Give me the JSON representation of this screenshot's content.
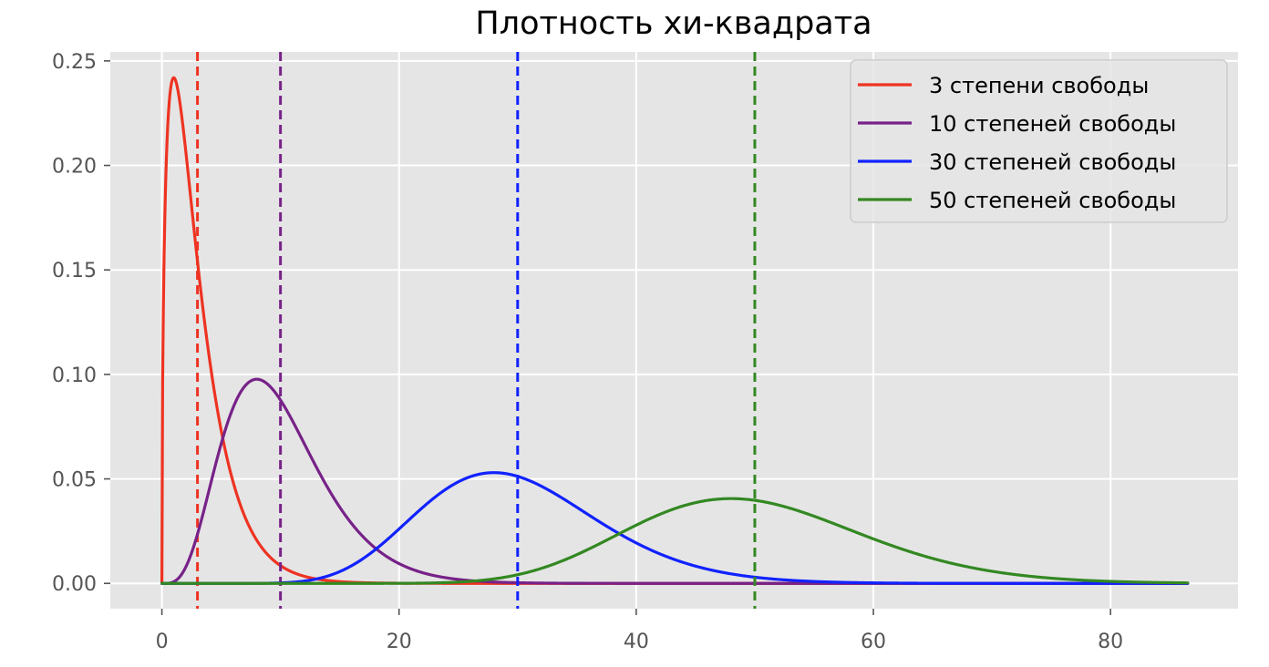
{
  "chart_data": {
    "type": "line",
    "title": "Плотность хи-квадрата",
    "xlabel": "",
    "ylabel": "",
    "xlim": [
      -4.35,
      90.75
    ],
    "ylim": [
      -0.0121,
      0.2543
    ],
    "x_ticks": [
      0,
      20,
      40,
      60,
      80
    ],
    "y_ticks": [
      0.0,
      0.05,
      0.1,
      0.15,
      0.2,
      0.25
    ],
    "x_tick_labels": [
      "0",
      "20",
      "40",
      "60",
      "80"
    ],
    "y_tick_labels": [
      "0.00",
      "0.05",
      "0.10",
      "0.15",
      "0.20",
      "0.25"
    ],
    "x_range": [
      0,
      86.5
    ],
    "grid": true,
    "background": "#e5e5e5",
    "legend_position": "top-right",
    "series": [
      {
        "name": "3 степени свободы",
        "df": 3,
        "color": "#ee3322",
        "mean_line_x": 3,
        "x": [
          0,
          0.25,
          0.5,
          1,
          1.5,
          2,
          3,
          4,
          5,
          6,
          8,
          10,
          12,
          15,
          20,
          25,
          30,
          40,
          60,
          86.5
        ],
        "y": [
          0,
          0.176,
          0.22,
          0.242,
          0.231,
          0.208,
          0.154,
          0.108,
          0.073,
          0.048,
          0.021,
          0.008,
          0.003,
          0.001,
          0,
          0,
          0,
          0,
          0,
          0
        ]
      },
      {
        "name": "10 степеней свободы",
        "df": 10,
        "color": "#772288",
        "mean_line_x": 10,
        "x": [
          0,
          1,
          2,
          3,
          4,
          5,
          6,
          7,
          8,
          9,
          10,
          12,
          14,
          16,
          18,
          20,
          22,
          25,
          30,
          35,
          40,
          60,
          86.5
        ],
        "y": [
          0,
          0.001,
          0.008,
          0.024,
          0.045,
          0.067,
          0.084,
          0.095,
          0.098,
          0.095,
          0.088,
          0.068,
          0.047,
          0.03,
          0.019,
          0.011,
          0.006,
          0.002,
          0.001,
          0,
          0,
          0,
          0
        ]
      },
      {
        "name": "30 степеней свободы",
        "df": 30,
        "color": "#1122ff",
        "mean_line_x": 30,
        "x": [
          0,
          5,
          10,
          12,
          14,
          16,
          18,
          20,
          22,
          24,
          26,
          28,
          30,
          32,
          34,
          36,
          38,
          40,
          42,
          44,
          46,
          48,
          50,
          55,
          60,
          70,
          86.5
        ],
        "y": [
          0,
          0,
          0,
          0.001,
          0.002,
          0.005,
          0.01,
          0.017,
          0.026,
          0.036,
          0.045,
          0.051,
          0.052,
          0.05,
          0.045,
          0.038,
          0.03,
          0.023,
          0.016,
          0.011,
          0.007,
          0.005,
          0.003,
          0.001,
          0,
          0,
          0
        ]
      },
      {
        "name": "50 степеней свободы",
        "df": 50,
        "color": "#338822",
        "mean_line_x": 50,
        "x": [
          0,
          10,
          20,
          25,
          30,
          34,
          38,
          42,
          46,
          48,
          50,
          54,
          58,
          62,
          66,
          70,
          74,
          78,
          82,
          86.5
        ],
        "y": [
          0,
          0,
          0,
          0.001,
          0.004,
          0.01,
          0.019,
          0.03,
          0.039,
          0.04,
          0.04,
          0.036,
          0.029,
          0.021,
          0.013,
          0.008,
          0.004,
          0.002,
          0.001,
          0
        ]
      }
    ]
  }
}
